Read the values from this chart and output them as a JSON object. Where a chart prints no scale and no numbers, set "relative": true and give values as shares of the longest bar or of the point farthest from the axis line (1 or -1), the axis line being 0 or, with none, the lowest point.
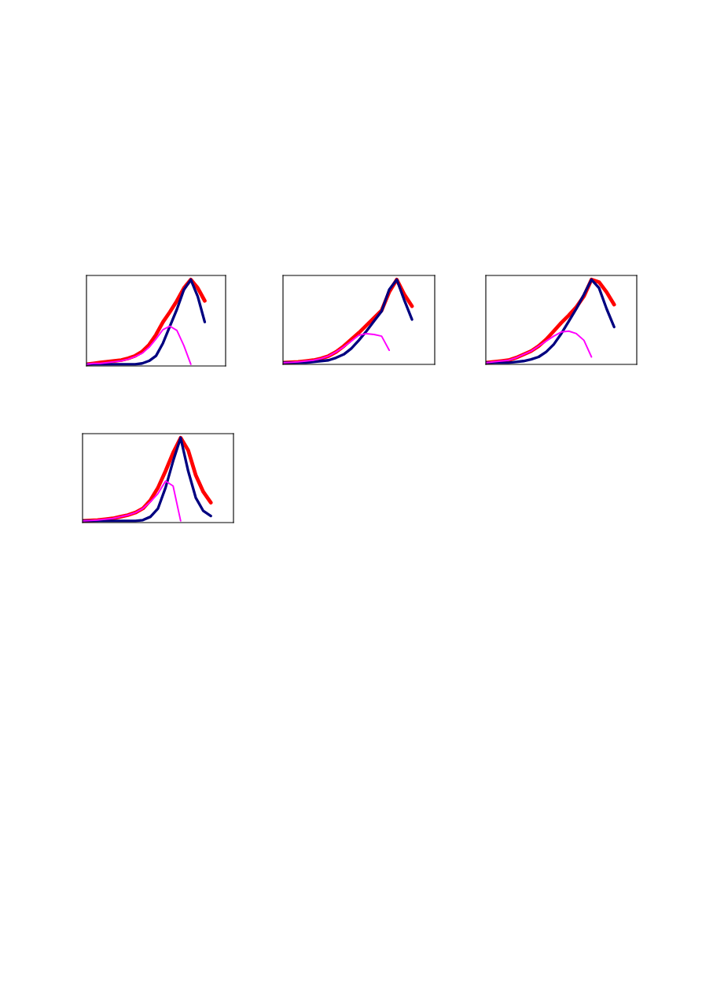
{
  "chart_data": [
    {
      "type": "line",
      "relative": true,
      "categories": [
        null,
        null,
        null,
        null,
        null,
        null,
        null,
        null,
        null,
        null,
        null,
        null,
        null,
        null,
        null,
        null,
        null,
        null,
        null,
        null,
        null
      ],
      "series": [
        {
          "color": "#ff0000",
          "values": [
            0,
            0.01,
            0.02,
            0.03,
            0.04,
            0.05,
            0.07,
            0.1,
            0.15,
            0.23,
            0.35,
            0.5,
            0.62,
            0.75,
            0.9,
            1,
            0.9,
            0.75,
            null,
            null,
            null
          ]
        },
        {
          "color": "#000080",
          "values": [
            0,
            0,
            0,
            0,
            0,
            0,
            0,
            0,
            0.01,
            0.04,
            0.1,
            0.25,
            0.45,
            0.65,
            0.88,
            1,
            0.8,
            0.5,
            null,
            null,
            null
          ]
        },
        {
          "color": "#ff00ff",
          "values": [
            0,
            0.01,
            0.01,
            0.02,
            0.03,
            0.04,
            0.06,
            0.09,
            0.13,
            0.2,
            0.3,
            0.41,
            0.45,
            0.4,
            0.22,
            0,
            null,
            null,
            null,
            null,
            null
          ]
        }
      ]
    },
    {
      "type": "line",
      "relative": true,
      "categories": [
        null,
        null,
        null,
        null,
        null,
        null,
        null,
        null,
        null,
        null,
        null,
        null,
        null,
        null,
        null,
        null,
        null,
        null,
        null,
        null,
        null
      ],
      "series": [
        {
          "color": "#ff0000",
          "values": [
            0,
            0.005,
            0.01,
            0.02,
            0.03,
            0.05,
            0.08,
            0.13,
            0.2,
            0.28,
            0.36,
            0.45,
            0.54,
            0.63,
            0.85,
            1,
            0.82,
            0.68,
            null,
            null,
            null
          ]
        },
        {
          "color": "#000080",
          "values": [
            0,
            0,
            0,
            0,
            0.01,
            0.02,
            0.03,
            0.06,
            0.1,
            0.17,
            0.27,
            0.38,
            0.5,
            0.62,
            0.88,
            1,
            0.75,
            0.52,
            null,
            null,
            null
          ]
        },
        {
          "color": "#ff00ff",
          "values": [
            0,
            0.005,
            0.01,
            0.02,
            0.03,
            0.05,
            0.08,
            0.13,
            0.19,
            0.26,
            0.33,
            0.35,
            0.34,
            0.32,
            0.15,
            null,
            null,
            null,
            null,
            null,
            null
          ]
        }
      ]
    },
    {
      "type": "line",
      "relative": true,
      "categories": [
        null,
        null,
        null,
        null,
        null,
        null,
        null,
        null,
        null,
        null,
        null,
        null,
        null,
        null,
        null,
        null,
        null,
        null,
        null,
        null,
        null
      ],
      "series": [
        {
          "color": "#ff0000",
          "values": [
            0,
            0.01,
            0.02,
            0.03,
            0.06,
            0.1,
            0.14,
            0.2,
            0.28,
            0.38,
            0.48,
            0.57,
            0.67,
            0.8,
            1,
            0.97,
            0.85,
            0.7,
            null,
            null,
            null
          ]
        },
        {
          "color": "#000080",
          "values": [
            0,
            0,
            0,
            0,
            0.01,
            0.02,
            0.04,
            0.07,
            0.13,
            0.22,
            0.35,
            0.5,
            0.65,
            0.82,
            1,
            0.9,
            0.65,
            0.43,
            null,
            null,
            null
          ]
        },
        {
          "color": "#ff00ff",
          "values": [
            0,
            0.01,
            0.02,
            0.03,
            0.06,
            0.1,
            0.14,
            0.2,
            0.26,
            0.32,
            0.37,
            0.38,
            0.35,
            0.27,
            0.07,
            null,
            null,
            null,
            null,
            null,
            null
          ]
        }
      ]
    },
    {
      "type": "line",
      "relative": true,
      "categories": [
        null,
        null,
        null,
        null,
        null,
        null,
        null,
        null,
        null,
        null,
        null,
        null,
        null,
        null,
        null,
        null,
        null,
        null,
        null,
        null,
        null
      ],
      "series": [
        {
          "color": "#ff0000",
          "values": [
            0,
            0.005,
            0.01,
            0.02,
            0.03,
            0.05,
            0.07,
            0.1,
            0.15,
            0.25,
            0.4,
            0.6,
            0.82,
            1,
            0.85,
            0.55,
            0.35,
            0.22,
            null,
            null,
            null
          ]
        },
        {
          "color": "#000080",
          "values": [
            0,
            0,
            0,
            0,
            0,
            0,
            0,
            0,
            0.01,
            0.05,
            0.15,
            0.4,
            0.72,
            1,
            0.6,
            0.28,
            0.12,
            0.06,
            null,
            null,
            null
          ]
        },
        {
          "color": "#ff00ff",
          "values": [
            0,
            0.005,
            0.01,
            0.02,
            0.03,
            0.05,
            0.07,
            0.1,
            0.15,
            0.23,
            0.33,
            0.48,
            0.42,
            0,
            null,
            null,
            null,
            null,
            null,
            null,
            null
          ]
        }
      ]
    }
  ]
}
